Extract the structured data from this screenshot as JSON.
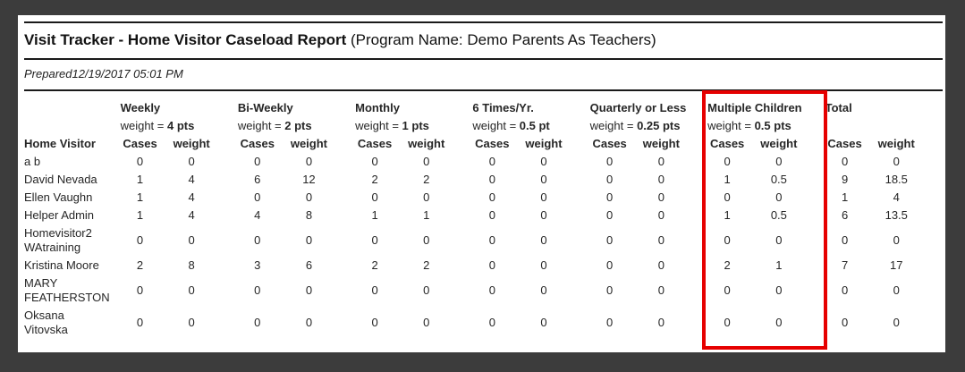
{
  "header": {
    "title_bold": "Visit Tracker - Home Visitor Caseload Report",
    "title_normal": " (Program Name: Demo Parents As Teachers)",
    "prepared_label": "Prepared",
    "prepared_datetime": "12/19/2017 05:01 PM"
  },
  "table": {
    "row_header": "Home Visitor",
    "cases_label": "Cases",
    "weight_label": "weight",
    "weight_prefix": "weight = ",
    "groups": [
      {
        "label": "Weekly",
        "weight_value": "4 pts"
      },
      {
        "label": "Bi-Weekly",
        "weight_value": "2 pts"
      },
      {
        "label": "Monthly",
        "weight_value": "1 pts"
      },
      {
        "label": "6 Times/Yr.",
        "weight_value": "0.5 pt"
      },
      {
        "label": "Quarterly or Less",
        "weight_value": "0.25 pts"
      },
      {
        "label": "Multiple Children",
        "weight_value": "0.5 pts"
      },
      {
        "label": "Total"
      }
    ],
    "rows": [
      {
        "name": "a b",
        "values": [
          0,
          0,
          0,
          0,
          0,
          0,
          0,
          0,
          0,
          0,
          0,
          0,
          0,
          0
        ]
      },
      {
        "name": "David Nevada",
        "values": [
          1,
          4,
          6,
          12,
          2,
          2,
          0,
          0,
          0,
          0,
          1,
          0.5,
          9,
          18.5
        ]
      },
      {
        "name": "Ellen Vaughn",
        "values": [
          1,
          4,
          0,
          0,
          0,
          0,
          0,
          0,
          0,
          0,
          0,
          0,
          1,
          4
        ]
      },
      {
        "name": "Helper Admin",
        "values": [
          1,
          4,
          4,
          8,
          1,
          1,
          0,
          0,
          0,
          0,
          1,
          0.5,
          6,
          13.5
        ]
      },
      {
        "name": "Homevisitor2 WAtraining",
        "values": [
          0,
          0,
          0,
          0,
          0,
          0,
          0,
          0,
          0,
          0,
          0,
          0,
          0,
          0
        ]
      },
      {
        "name": "Kristina Moore",
        "values": [
          2,
          8,
          3,
          6,
          2,
          2,
          0,
          0,
          0,
          0,
          2,
          1,
          7,
          17
        ]
      },
      {
        "name": "MARY FEATHERSTON",
        "values": [
          0,
          0,
          0,
          0,
          0,
          0,
          0,
          0,
          0,
          0,
          0,
          0,
          0,
          0
        ]
      },
      {
        "name": "Oksana Vitovska",
        "values": [
          0,
          0,
          0,
          0,
          0,
          0,
          0,
          0,
          0,
          0,
          0,
          0,
          0,
          0
        ]
      }
    ]
  },
  "highlight": {
    "target_group": "Multiple Children",
    "color": "#e60000"
  },
  "colors": {
    "frame": "#3c3c3c",
    "page_background": "#ffffff",
    "rule": "#1a1a1a"
  }
}
